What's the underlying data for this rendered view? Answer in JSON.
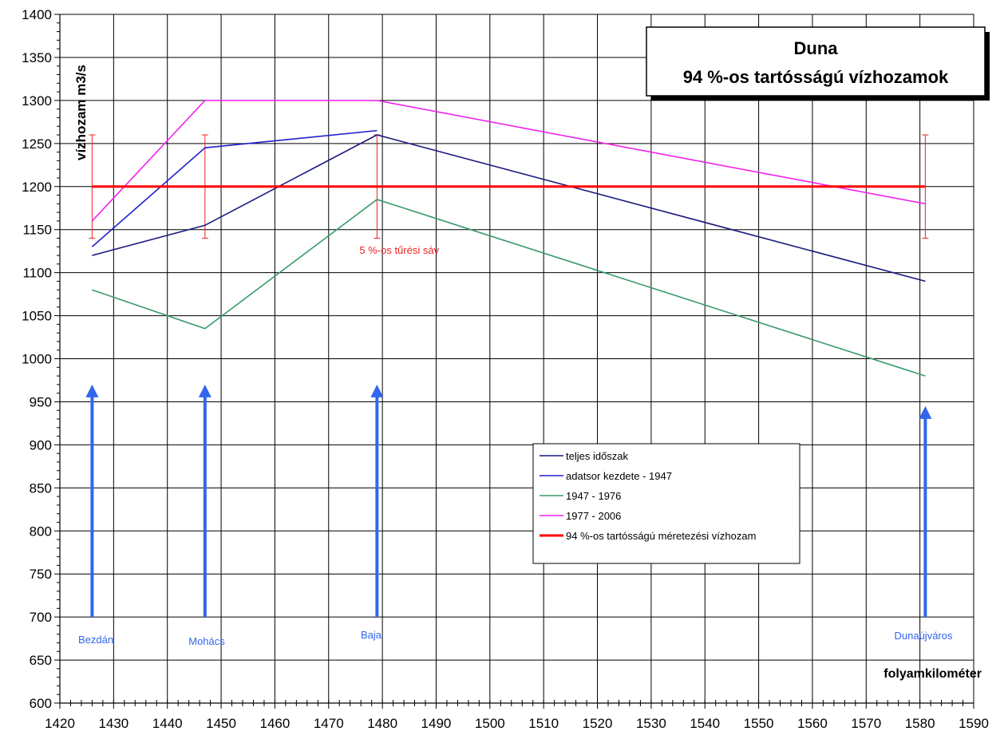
{
  "chart_data": {
    "type": "line",
    "title_lines": [
      "Duna",
      "94 %-os tartósságú vízhozamok"
    ],
    "xlabel": "folyamkilométer",
    "ylabel": "vízhozam m3/s",
    "xlim": [
      1420,
      1590
    ],
    "ylim": [
      600,
      1400
    ],
    "x_ticks": [
      1420,
      1430,
      1440,
      1450,
      1460,
      1470,
      1480,
      1490,
      1500,
      1510,
      1520,
      1530,
      1540,
      1550,
      1560,
      1570,
      1580,
      1590
    ],
    "y_ticks": [
      600,
      650,
      700,
      750,
      800,
      850,
      900,
      950,
      1000,
      1050,
      1100,
      1150,
      1200,
      1250,
      1300,
      1350,
      1400
    ],
    "grid": true,
    "legend_position": "center-right",
    "series": [
      {
        "name": "teljes időszak",
        "color": "#1a1a80",
        "points": [
          [
            1426,
            1120
          ],
          [
            1447,
            1155
          ],
          [
            1479,
            1260
          ],
          [
            1581,
            1090
          ]
        ]
      },
      {
        "name": "adatsor kezdete - 1947",
        "color": "#1f1fd0",
        "points": [
          [
            1426,
            1130
          ],
          [
            1447,
            1245
          ],
          [
            1479,
            1265
          ]
        ]
      },
      {
        "name": "1947 - 1976",
        "color": "#3a9a6a",
        "points": [
          [
            1426,
            1080
          ],
          [
            1447,
            1035
          ],
          [
            1479,
            1185
          ],
          [
            1581,
            980
          ]
        ]
      },
      {
        "name": "1977 - 2006",
        "color": "#ee22ee",
        "points": [
          [
            1426,
            1160
          ],
          [
            1447,
            1300
          ],
          [
            1479,
            1300
          ],
          [
            1581,
            1180
          ]
        ]
      },
      {
        "name": "94 %-os tartósságú méretezési vízhozam",
        "color": "#ff0000",
        "points": [
          [
            1426,
            1200
          ],
          [
            1581,
            1200
          ]
        ]
      }
    ],
    "tolerance_band": {
      "label": "5 %-os tűrési sáv",
      "low": 1140,
      "high": 1260,
      "color": "#ee2222",
      "x": [
        1426,
        1447,
        1479,
        1581
      ]
    },
    "stations": [
      {
        "name": "Bezdán",
        "x": 1426,
        "arrow_top": 970
      },
      {
        "name": "Mohács",
        "x": 1447,
        "arrow_top": 970
      },
      {
        "name": "Baja",
        "x": 1479,
        "arrow_top": 970
      },
      {
        "name": "Dunaújváros",
        "x": 1581,
        "arrow_top": 945
      }
    ],
    "station_color": "#3366ee",
    "arrow_base": 700
  }
}
